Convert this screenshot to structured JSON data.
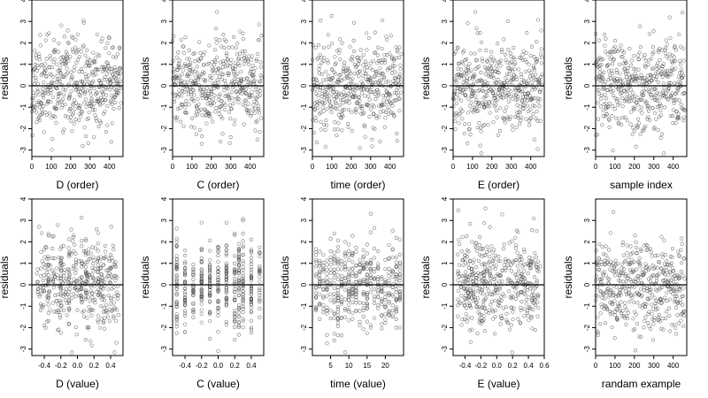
{
  "chart_data": [
    {
      "type": "scatter",
      "xlabel": "D (order)",
      "ylabel": "residuals",
      "xlim": [
        0,
        470
      ],
      "ylim": [
        -3.3,
        4
      ],
      "x_ticks": [
        "0",
        "100",
        "200",
        "300",
        "400"
      ],
      "x_tick_values": [
        0,
        100,
        200,
        300,
        400
      ],
      "y_ticks": [
        "-3",
        "-2",
        "-1",
        "0",
        "1",
        "2",
        "3",
        "4"
      ],
      "y_tick_values": [
        -3,
        -2,
        -1,
        0,
        1,
        2,
        3,
        4
      ],
      "reference_line_y": 0,
      "gen": {
        "seed": 11,
        "mode": "index",
        "n": 460
      }
    },
    {
      "type": "scatter",
      "xlabel": "C (order)",
      "ylabel": "residuals",
      "xlim": [
        0,
        470
      ],
      "ylim": [
        -3.3,
        4
      ],
      "x_ticks": [
        "0",
        "100",
        "200",
        "300",
        "400"
      ],
      "x_tick_values": [
        0,
        100,
        200,
        300,
        400
      ],
      "y_ticks": [
        "-3",
        "-2",
        "-1",
        "0",
        "1",
        "2",
        "3",
        "4"
      ],
      "y_tick_values": [
        -3,
        -2,
        -1,
        0,
        1,
        2,
        3,
        4
      ],
      "reference_line_y": 0,
      "gen": {
        "seed": 23,
        "mode": "index",
        "n": 460
      }
    },
    {
      "type": "scatter",
      "xlabel": "time (order)",
      "ylabel": "residuals",
      "xlim": [
        0,
        470
      ],
      "ylim": [
        -3.3,
        4
      ],
      "x_ticks": [
        "0",
        "100",
        "200",
        "300",
        "400"
      ],
      "x_tick_values": [
        0,
        100,
        200,
        300,
        400
      ],
      "y_ticks": [
        "-3",
        "-2",
        "-1",
        "0",
        "1",
        "2",
        "3",
        "4"
      ],
      "y_tick_values": [
        -3,
        -2,
        -1,
        0,
        1,
        2,
        3,
        4
      ],
      "reference_line_y": 0,
      "gen": {
        "seed": 37,
        "mode": "index",
        "n": 460
      }
    },
    {
      "type": "scatter",
      "xlabel": "E (order)",
      "ylabel": "residuals",
      "xlim": [
        0,
        470
      ],
      "ylim": [
        -3.3,
        4
      ],
      "x_ticks": [
        "0",
        "100",
        "200",
        "300",
        "400"
      ],
      "x_tick_values": [
        0,
        100,
        200,
        300,
        400
      ],
      "y_ticks": [
        "-3",
        "-2",
        "-1",
        "0",
        "1",
        "2",
        "3",
        "4"
      ],
      "y_tick_values": [
        -3,
        -2,
        -1,
        0,
        1,
        2,
        3,
        4
      ],
      "reference_line_y": 0,
      "gen": {
        "seed": 41,
        "mode": "index",
        "n": 460
      }
    },
    {
      "type": "scatter",
      "xlabel": "sample index",
      "ylabel": "residuals",
      "xlim": [
        0,
        470
      ],
      "ylim": [
        -3.3,
        4
      ],
      "x_ticks": [
        "0",
        "100",
        "200",
        "300",
        "400"
      ],
      "x_tick_values": [
        0,
        100,
        200,
        300,
        400
      ],
      "y_ticks": [
        "-3",
        "-2",
        "-1",
        "0",
        "1",
        "2",
        "3",
        "4"
      ],
      "y_tick_values": [
        -3,
        -2,
        -1,
        0,
        1,
        2,
        3,
        4
      ],
      "reference_line_y": 0,
      "gen": {
        "seed": 53,
        "mode": "index",
        "n": 460
      }
    },
    {
      "type": "scatter",
      "xlabel": "D (value)",
      "ylabel": "residuals",
      "xlim": [
        -0.55,
        0.55
      ],
      "ylim": [
        -3.3,
        4
      ],
      "x_ticks": [
        "-0.4",
        "-0.2",
        "0.0",
        "0.2",
        "0.4"
      ],
      "x_tick_values": [
        -0.4,
        -0.2,
        0,
        0.2,
        0.4
      ],
      "y_ticks": [
        "-3",
        "-2",
        "-1",
        "0",
        "1",
        "2",
        "3",
        "4"
      ],
      "y_tick_values": [
        -3,
        -2,
        -1,
        0,
        1,
        2,
        3,
        4
      ],
      "reference_line_y": 0,
      "gen": {
        "seed": 61,
        "mode": "uniform",
        "n": 460,
        "lo": -0.5,
        "hi": 0.5,
        "stripes": [
          -0.35,
          -0.2,
          -0.1,
          0.05,
          0.1,
          0.25
        ]
      }
    },
    {
      "type": "scatter",
      "xlabel": "C (value)",
      "ylabel": "residuals",
      "xlim": [
        -0.55,
        0.55
      ],
      "ylim": [
        -3.3,
        4
      ],
      "x_ticks": [
        "-0.4",
        "-0.2",
        "0.0",
        "0.2",
        "0.4"
      ],
      "x_tick_values": [
        -0.4,
        -0.2,
        0,
        0.2,
        0.4
      ],
      "y_ticks": [
        "-3",
        "-2",
        "-1",
        "0",
        "1",
        "2",
        "3",
        "4"
      ],
      "y_tick_values": [
        -3,
        -2,
        -1,
        0,
        1,
        2,
        3,
        4
      ],
      "reference_line_y": 0,
      "gen": {
        "seed": 71,
        "mode": "categorical",
        "n": 460,
        "levels": [
          -0.5,
          -0.4,
          -0.3,
          -0.2,
          -0.1,
          0,
          0.1,
          0.2,
          0.25,
          0.3,
          0.4,
          0.5
        ]
      }
    },
    {
      "type": "scatter",
      "xlabel": "time (value)",
      "ylabel": "residuals",
      "xlim": [
        0,
        25
      ],
      "ylim": [
        -3.3,
        4
      ],
      "x_ticks": [
        "5",
        "10",
        "15",
        "20"
      ],
      "x_tick_values": [
        5,
        10,
        15,
        20
      ],
      "y_ticks": [
        "-3",
        "-2",
        "-1",
        "0",
        "1",
        "2",
        "3",
        "4"
      ],
      "y_tick_values": [
        -3,
        -2,
        -1,
        0,
        1,
        2,
        3,
        4
      ],
      "reference_line_y": 0,
      "gen": {
        "seed": 83,
        "mode": "categorical",
        "n": 460,
        "levels": [
          1,
          2,
          3,
          4,
          5,
          6,
          7,
          8,
          9,
          10,
          11,
          12,
          13,
          14,
          15,
          16,
          17,
          18,
          19,
          20,
          21,
          22,
          23,
          24
        ]
      }
    },
    {
      "type": "scatter",
      "xlabel": "E (value)",
      "ylabel": "residuals",
      "xlim": [
        -0.55,
        0.6
      ],
      "ylim": [
        -3.3,
        4
      ],
      "x_ticks": [
        "-0.4",
        "-0.2",
        "0.0",
        "0.2",
        "0.4",
        "0.6"
      ],
      "x_tick_values": [
        -0.4,
        -0.2,
        0,
        0.2,
        0.4,
        0.6
      ],
      "y_ticks": [
        "-3",
        "-2",
        "-1",
        "0",
        "1",
        "2",
        "3",
        "4"
      ],
      "y_tick_values": [
        -3,
        -2,
        -1,
        0,
        1,
        2,
        3,
        4
      ],
      "reference_line_y": 0,
      "gen": {
        "seed": 97,
        "mode": "uniform",
        "n": 460,
        "lo": -0.5,
        "hi": 0.55,
        "stripes": []
      }
    },
    {
      "type": "scatter",
      "xlabel": "randam example",
      "ylabel": "residuals",
      "xlim": [
        0,
        470
      ],
      "ylim": [
        -3.3,
        4
      ],
      "x_ticks": [
        "0",
        "100",
        "200",
        "300",
        "400"
      ],
      "x_tick_values": [
        0,
        100,
        200,
        300,
        400
      ],
      "y_ticks": [
        "-3",
        "-2",
        "-1",
        "0",
        "1",
        "2",
        "3"
      ],
      "y_tick_values": [
        -3,
        -2,
        -1,
        0,
        1,
        2,
        3
      ],
      "reference_line_y": 0,
      "gen": {
        "seed": 101,
        "mode": "index",
        "n": 460
      }
    }
  ]
}
